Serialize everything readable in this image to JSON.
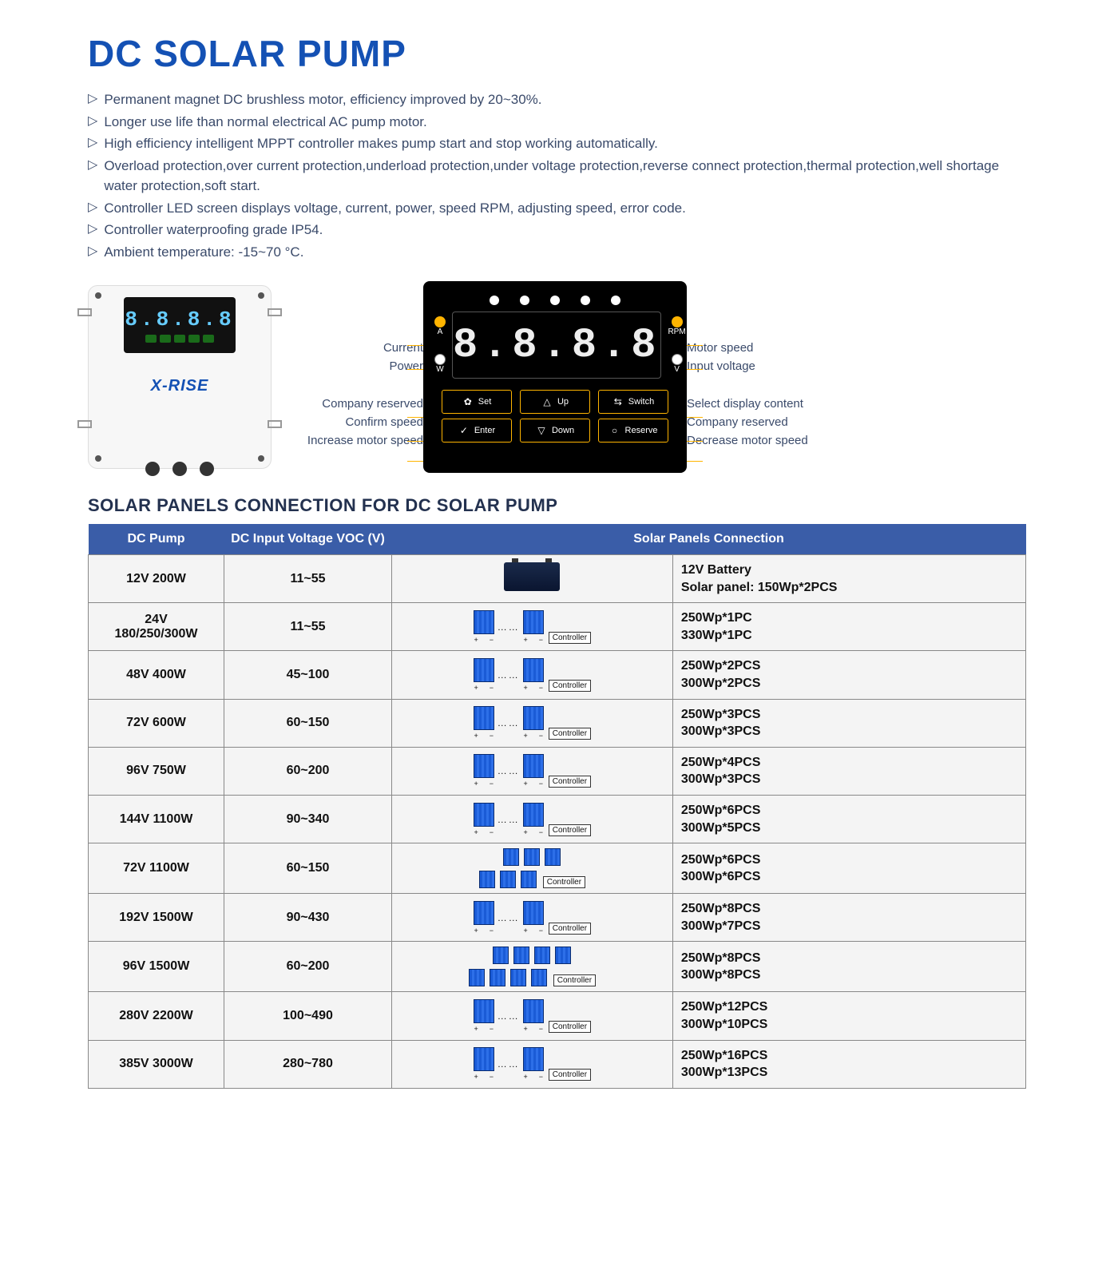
{
  "colors": {
    "brand_blue": "#1451b4",
    "heading": "#23314f",
    "body_text": "#3a4a6a",
    "table_header_bg": "#3a5da8",
    "table_header_fg": "#ffffff",
    "table_cell_bg": "#f4f4f4",
    "table_border": "#888888",
    "accent_yellow": "#ffb400",
    "panel_bg": "#000000",
    "solar_panel": "#1a5bd6"
  },
  "title": "DC SOLAR PUMP",
  "bullets": [
    "Permanent magnet DC brushless motor, efficiency improved by 20~30%.",
    "Longer use life than normal electrical AC pump motor.",
    "High efficiency intelligent MPPT controller makes pump start and stop working automatically.",
    "Overload protection,over current protection,underload protection,under voltage protection,reverse connect protection,thermal protection,well shortage water protection,soft start.",
    "Controller LED screen displays voltage, current, power, speed RPM, adjusting speed, error code.",
    "Controller waterproofing grade IP54.",
    "Ambient temperature: -15~70 °C."
  ],
  "product": {
    "brand": "X-RISE",
    "digits": "8.8.8.8"
  },
  "panel": {
    "digits": "8.8.8.8",
    "led_count": 5,
    "left_indicators": [
      {
        "label_top": "A",
        "label_bottom": "W"
      }
    ],
    "left_labels": [
      "A",
      "W"
    ],
    "right_labels": [
      "RPM",
      "V"
    ],
    "buttons_row1": [
      {
        "icon": "gear",
        "label": "Set"
      },
      {
        "icon": "up",
        "label": "Up"
      },
      {
        "icon": "swap",
        "label": "Switch"
      }
    ],
    "buttons_row2": [
      {
        "icon": "check",
        "label": "Enter"
      },
      {
        "icon": "down",
        "label": "Down"
      },
      {
        "icon": "circle",
        "label": "Reserve"
      }
    ],
    "callouts_left": [
      "Current",
      "Power",
      "Company reserved",
      "Confirm speed",
      "Increase motor speed"
    ],
    "callouts_right": [
      "Motor speed",
      "Input voltage",
      "Select display content",
      "Company reserved",
      "Decrease motor speed"
    ]
  },
  "subhead": "SOLAR PANELS CONNECTION FOR DC SOLAR PUMP",
  "table": {
    "columns": [
      "DC Pump",
      "DC Input Voltage VOC (V)",
      "Solar Panels Connection"
    ],
    "rows": [
      {
        "pump": "12V 200W",
        "voc": "11~55",
        "diagram": "battery",
        "panels": [
          "12V Battery",
          "Solar panel: 150Wp*2PCS"
        ]
      },
      {
        "pump": "24V 180/250/300W",
        "voc": "11~55",
        "diagram": "series1",
        "panels": [
          "250Wp*1PC",
          "330Wp*1PC"
        ]
      },
      {
        "pump": "48V 400W",
        "voc": "45~100",
        "diagram": "series1",
        "panels": [
          "250Wp*2PCS",
          "300Wp*2PCS"
        ]
      },
      {
        "pump": "72V 600W",
        "voc": "60~150",
        "diagram": "series1",
        "panels": [
          "250Wp*3PCS",
          "300Wp*3PCS"
        ]
      },
      {
        "pump": "96V 750W",
        "voc": "60~200",
        "diagram": "series1",
        "panels": [
          "250Wp*4PCS",
          "300Wp*3PCS"
        ]
      },
      {
        "pump": "144V 1100W",
        "voc": "90~340",
        "diagram": "series1",
        "panels": [
          "250Wp*6PCS",
          "300Wp*5PCS"
        ]
      },
      {
        "pump": "72V 1100W",
        "voc": "60~150",
        "diagram": "parallel2x3",
        "panels": [
          "250Wp*6PCS",
          "300Wp*6PCS"
        ]
      },
      {
        "pump": "192V 1500W",
        "voc": "90~430",
        "diagram": "series1",
        "panels": [
          "250Wp*8PCS",
          "300Wp*7PCS"
        ]
      },
      {
        "pump": "96V 1500W",
        "voc": "60~200",
        "diagram": "parallel2x4",
        "panels": [
          "250Wp*8PCS",
          "300Wp*8PCS"
        ]
      },
      {
        "pump": "280V 2200W",
        "voc": "100~490",
        "diagram": "series1",
        "panels": [
          "250Wp*12PCS",
          "300Wp*10PCS"
        ]
      },
      {
        "pump": "385V 3000W",
        "voc": "280~780",
        "diagram": "series1",
        "panels": [
          "250Wp*16PCS",
          "300Wp*13PCS"
        ]
      }
    ],
    "controller_label": "Controller"
  }
}
